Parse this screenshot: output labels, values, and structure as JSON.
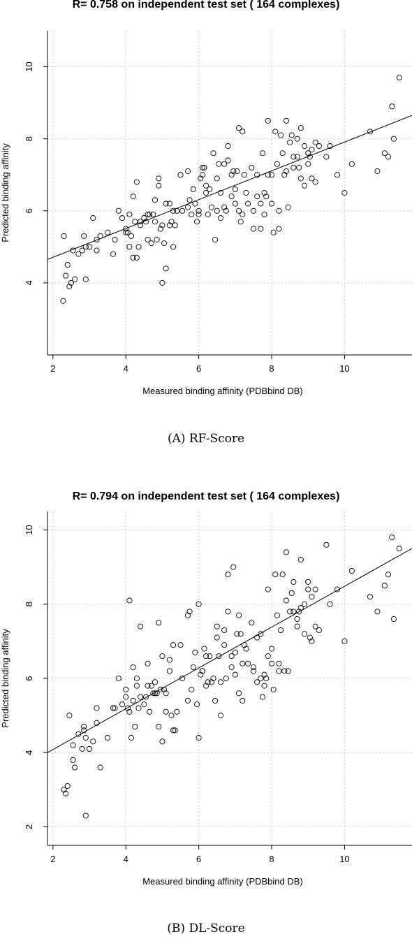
{
  "figure": {
    "panels": [
      {
        "caption": "(A) RF-Score"
      },
      {
        "caption": "(B) DL-Score"
      }
    ]
  },
  "chart_data": [
    {
      "type": "scatter",
      "title": "R= 0.758 on independent test set ( 164  complexes)",
      "xlabel": "Measured binding affinity (PDBbind DB)",
      "ylabel": "Predicted binding affinity",
      "xlim": [
        1.85,
        11.85
      ],
      "ylim": [
        2.0,
        11.0
      ],
      "xticks": [
        2,
        4,
        6,
        8,
        10
      ],
      "yticks": [
        4,
        6,
        8,
        10
      ],
      "grid": true,
      "fit_line": {
        "x": [
          1.85,
          11.85
        ],
        "y": [
          4.65,
          8.65
        ]
      },
      "series": [
        {
          "x": [
            2.3,
            2.4,
            2.35,
            2.5,
            2.6,
            2.7,
            2.8,
            2.9,
            3.0,
            3.1,
            3.2,
            3.3,
            2.28,
            2.45,
            2.9,
            3.7,
            3.8,
            4.0,
            4.1,
            4.2,
            4.3,
            4.4,
            4.5,
            4.6,
            4.8,
            4.9,
            5.0,
            5.1,
            5.2,
            5.3,
            5.5,
            5.7,
            5.9,
            6.0,
            6.1,
            6.2,
            6.3,
            6.4,
            6.5,
            6.6,
            6.7,
            6.8,
            6.9,
            7.0,
            7.1,
            7.2,
            7.3,
            7.5,
            7.7,
            7.8,
            7.9,
            8.0,
            8.1,
            8.2,
            8.3,
            8.4,
            8.5,
            8.6,
            8.7,
            8.8,
            8.9,
            9.0,
            9.1,
            9.2,
            9.5,
            9.8,
            10.0,
            10.2,
            10.9,
            11.1,
            11.3,
            11.5,
            4.1,
            4.25,
            4.4,
            4.75,
            4.9,
            5.0,
            5.1,
            5.25,
            5.35,
            5.8,
            6.0,
            6.25,
            6.45,
            6.6,
            6.75,
            6.9,
            7.1,
            7.25,
            7.5,
            7.6,
            7.75,
            7.9,
            8.05,
            8.35,
            8.45,
            8.7,
            8.9,
            9.05,
            9.2,
            4.0,
            4.2,
            4.55,
            4.65,
            4.85,
            5.2,
            5.55,
            5.7,
            5.95,
            6.05,
            6.2,
            6.35,
            6.5,
            6.8,
            7.0,
            7.2,
            7.35,
            7.6,
            7.8,
            8.0,
            8.2,
            8.4,
            8.6,
            8.8,
            9.0,
            9.3,
            3.2,
            3.65,
            3.9,
            4.15,
            4.35,
            4.7,
            4.95,
            5.3,
            5.75,
            6.15,
            6.55,
            6.95,
            7.05,
            7.45,
            7.85,
            8.15,
            8.55,
            8.75,
            9.1,
            9.6,
            10.7,
            11.2,
            11.35,
            2.55,
            2.85,
            3.5,
            4.05,
            4.3,
            4.6,
            4.8,
            5.05,
            5.4,
            5.85,
            6.1,
            6.7,
            7.15,
            7.7,
            8.25
          ],
          "y": [
            5.3,
            4.5,
            4.2,
            4.0,
            4.1,
            4.8,
            4.9,
            5.0,
            5.0,
            5.8,
            5.2,
            5.3,
            3.5,
            3.9,
            4.1,
            5.2,
            6.0,
            5.5,
            5.0,
            6.4,
            6.8,
            5.7,
            5.8,
            5.9,
            6.3,
            6.7,
            4.0,
            6.2,
            5.6,
            5.0,
            7.0,
            7.1,
            6.2,
            6.0,
            7.0,
            6.5,
            6.6,
            7.6,
            6.0,
            6.5,
            6.1,
            7.8,
            7.0,
            6.2,
            8.3,
            8.2,
            6.5,
            5.5,
            6.2,
            6.5,
            8.5,
            7.0,
            8.2,
            6.0,
            7.6,
            8.5,
            7.9,
            7.5,
            8.0,
            8.3,
            7.8,
            7.6,
            6.9,
            7.9,
            7.5,
            7.0,
            6.5,
            7.3,
            7.1,
            7.6,
            8.9,
            9.7,
            5.9,
            5.7,
            5.6,
            5.9,
            6.9,
            5.6,
            4.4,
            5.7,
            5.6,
            5.9,
            5.9,
            5.9,
            5.2,
            5.8,
            6.0,
            6.4,
            6.0,
            7.0,
            6.0,
            7.0,
            7.6,
            7.0,
            5.4,
            7.0,
            6.1,
            7.5,
            6.7,
            7.5,
            6.8,
            5.4,
            4.7,
            5.7,
            5.9,
            5.2,
            6.2,
            6.0,
            6.1,
            5.7,
            6.9,
            6.7,
            6.1,
            6.9,
            7.4,
            6.6,
            5.9,
            6.2,
            6.4,
            5.9,
            6.2,
            5.5,
            7.1,
            7.2,
            6.9,
            7.3,
            7.8,
            4.9,
            4.8,
            5.8,
            5.3,
            5.0,
            5.1,
            5.5,
            6.0,
            6.3,
            7.2,
            7.3,
            7.1,
            7.1,
            7.2,
            6.4,
            7.3,
            8.1,
            7.2,
            7.7,
            7.8,
            8.2,
            7.5,
            8.0,
            4.9,
            5.3,
            5.4,
            5.4,
            4.7,
            5.2,
            5.7,
            5.1,
            6.0,
            6.6,
            7.2,
            7.3,
            5.7,
            5.5,
            8.1
          ]
        }
      ]
    },
    {
      "type": "scatter",
      "title": "R= 0.794 on independent test set ( 164  complexes)",
      "xlabel": "Measured binding affinity (PDBbind DB)",
      "ylabel": "Predicted binding affinity",
      "xlim": [
        1.85,
        11.85
      ],
      "ylim": [
        1.5,
        10.5
      ],
      "xticks": [
        2,
        4,
        6,
        8,
        10
      ],
      "yticks": [
        2,
        4,
        6,
        8,
        10
      ],
      "grid": true,
      "fit_line": {
        "x": [
          1.85,
          11.85
        ],
        "y": [
          4.0,
          9.5
        ]
      },
      "series": [
        {
          "x": [
            2.3,
            2.35,
            2.4,
            2.45,
            2.55,
            2.6,
            2.7,
            2.8,
            2.85,
            2.9,
            3.0,
            3.1,
            3.2,
            3.3,
            2.9,
            3.7,
            3.8,
            4.0,
            4.1,
            4.2,
            4.3,
            4.4,
            4.5,
            4.6,
            4.8,
            4.9,
            5.0,
            5.1,
            5.2,
            5.3,
            5.5,
            5.7,
            5.9,
            6.0,
            6.1,
            6.2,
            6.3,
            6.4,
            6.5,
            6.6,
            6.7,
            6.8,
            6.9,
            7.0,
            7.1,
            7.2,
            7.3,
            7.5,
            7.7,
            7.8,
            7.9,
            8.0,
            8.1,
            8.2,
            8.3,
            8.4,
            8.5,
            8.6,
            8.7,
            8.8,
            8.9,
            9.0,
            9.1,
            9.2,
            9.5,
            9.8,
            10.0,
            10.2,
            10.9,
            11.1,
            11.3,
            11.5,
            4.1,
            4.25,
            4.4,
            4.75,
            4.9,
            5.0,
            5.1,
            5.25,
            5.35,
            5.8,
            6.0,
            6.25,
            6.45,
            6.6,
            6.75,
            6.9,
            7.1,
            7.25,
            7.5,
            7.6,
            7.75,
            7.9,
            8.05,
            8.35,
            8.45,
            8.7,
            8.9,
            9.05,
            9.2,
            4.0,
            4.2,
            4.55,
            4.65,
            4.85,
            5.2,
            5.55,
            5.7,
            5.95,
            6.05,
            6.2,
            6.35,
            6.5,
            6.8,
            7.0,
            7.2,
            7.35,
            7.6,
            7.8,
            8.0,
            8.2,
            8.4,
            8.6,
            8.8,
            9.0,
            9.3,
            3.2,
            3.65,
            3.9,
            4.15,
            4.35,
            4.7,
            4.95,
            5.3,
            5.75,
            6.15,
            6.55,
            6.95,
            7.05,
            7.45,
            7.85,
            8.15,
            8.55,
            8.75,
            9.1,
            9.6,
            10.7,
            11.2,
            11.35,
            2.55,
            2.85,
            3.5,
            4.05,
            4.3,
            4.6,
            4.8,
            5.05,
            5.4,
            5.85,
            6.1,
            6.7,
            7.15,
            7.7,
            8.25
          ],
          "y": [
            3.0,
            2.9,
            3.1,
            5.0,
            3.8,
            3.6,
            4.5,
            4.1,
            4.7,
            2.3,
            4.1,
            4.3,
            4.8,
            3.6,
            4.4,
            5.2,
            6.0,
            5.7,
            8.1,
            6.3,
            5.8,
            7.4,
            5.3,
            5.8,
            5.6,
            7.5,
            4.3,
            5.6,
            6.2,
            4.6,
            6.9,
            7.7,
            6.7,
            8.0,
            6.2,
            5.8,
            6.6,
            6.0,
            7.1,
            5.9,
            7.3,
            8.8,
            6.3,
            6.1,
            7.7,
            6.4,
            6.8,
            6.2,
            6.0,
            6.1,
            8.4,
            6.4,
            8.8,
            6.2,
            8.8,
            9.4,
            7.8,
            7.8,
            7.6,
            9.2,
            8.0,
            8.4,
            7.0,
            8.4,
            9.6,
            8.4,
            7.0,
            8.9,
            7.8,
            8.5,
            9.8,
            9.5,
            5.1,
            4.7,
            5.5,
            5.6,
            4.7,
            6.6,
            5.1,
            5.0,
            4.6,
            5.7,
            4.4,
            5.9,
            5.4,
            5.0,
            6.0,
            6.6,
            5.6,
            6.9,
            6.3,
            7.1,
            5.5,
            6.6,
            5.7,
            6.2,
            6.2,
            7.4,
            7.2,
            7.1,
            7.4,
            5.5,
            5.4,
            5.5,
            5.1,
            5.6,
            6.5,
            6.0,
            5.4,
            5.3,
            6.1,
            6.6,
            5.9,
            7.4,
            7.8,
            6.7,
            5.4,
            6.4,
            5.9,
            5.8,
            6.8,
            6.4,
            8.1,
            8.6,
            7.9,
            8.6,
            7.3,
            5.2,
            5.2,
            5.3,
            4.4,
            5.2,
            5.8,
            5.7,
            6.9,
            7.8,
            6.8,
            6.6,
            9.0,
            7.2,
            7.5,
            6.0,
            7.7,
            8.3,
            7.8,
            8.2,
            8.0,
            8.2,
            8.8,
            7.6,
            4.2,
            4.6,
            4.4,
            5.2,
            6.0,
            6.4,
            5.9,
            5.7,
            5.1,
            6.3,
            6.2,
            6.9,
            7.2,
            7.2,
            7.3
          ]
        }
      ]
    }
  ]
}
